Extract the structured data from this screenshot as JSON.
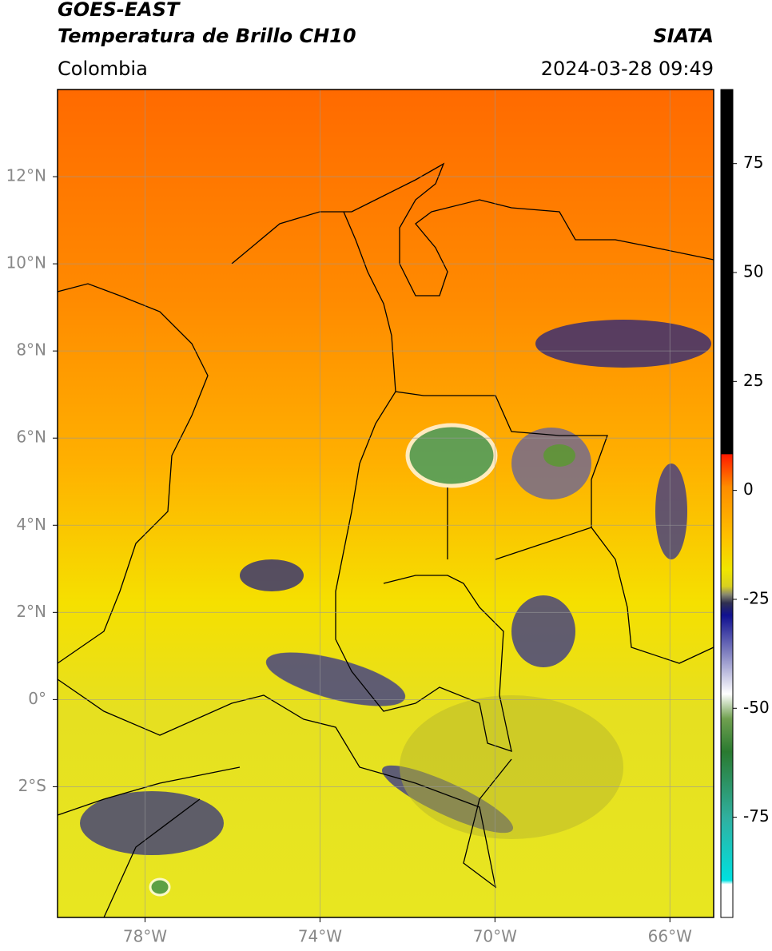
{
  "header": {
    "satellite": "GOES-EAST",
    "product": "Temperatura de Brillo CH10",
    "source": "SIATA",
    "region": "Colombia",
    "datetime": "2024-03-28 09:49"
  },
  "map": {
    "xlim": [
      -80,
      -65
    ],
    "ylim": [
      -5,
      14
    ],
    "grid": true,
    "xticks": [
      {
        "value": -78,
        "label": "78°W"
      },
      {
        "value": -74,
        "label": "74°W"
      },
      {
        "value": -70,
        "label": "70°W"
      },
      {
        "value": -66,
        "label": "66°W"
      }
    ],
    "yticks": [
      {
        "value": 12,
        "label": "12°N"
      },
      {
        "value": 10,
        "label": "10°N"
      },
      {
        "value": 8,
        "label": "8°N"
      },
      {
        "value": 6,
        "label": "6°N"
      },
      {
        "value": 4,
        "label": "4°N"
      },
      {
        "value": 2,
        "label": "2°N"
      },
      {
        "value": 0,
        "label": "0°"
      },
      {
        "value": -2,
        "label": "2°S"
      }
    ]
  },
  "colorbar": {
    "lim": [
      -98,
      92
    ],
    "ticks": [
      75,
      50,
      25,
      0,
      -25,
      -50,
      -75
    ]
  }
}
